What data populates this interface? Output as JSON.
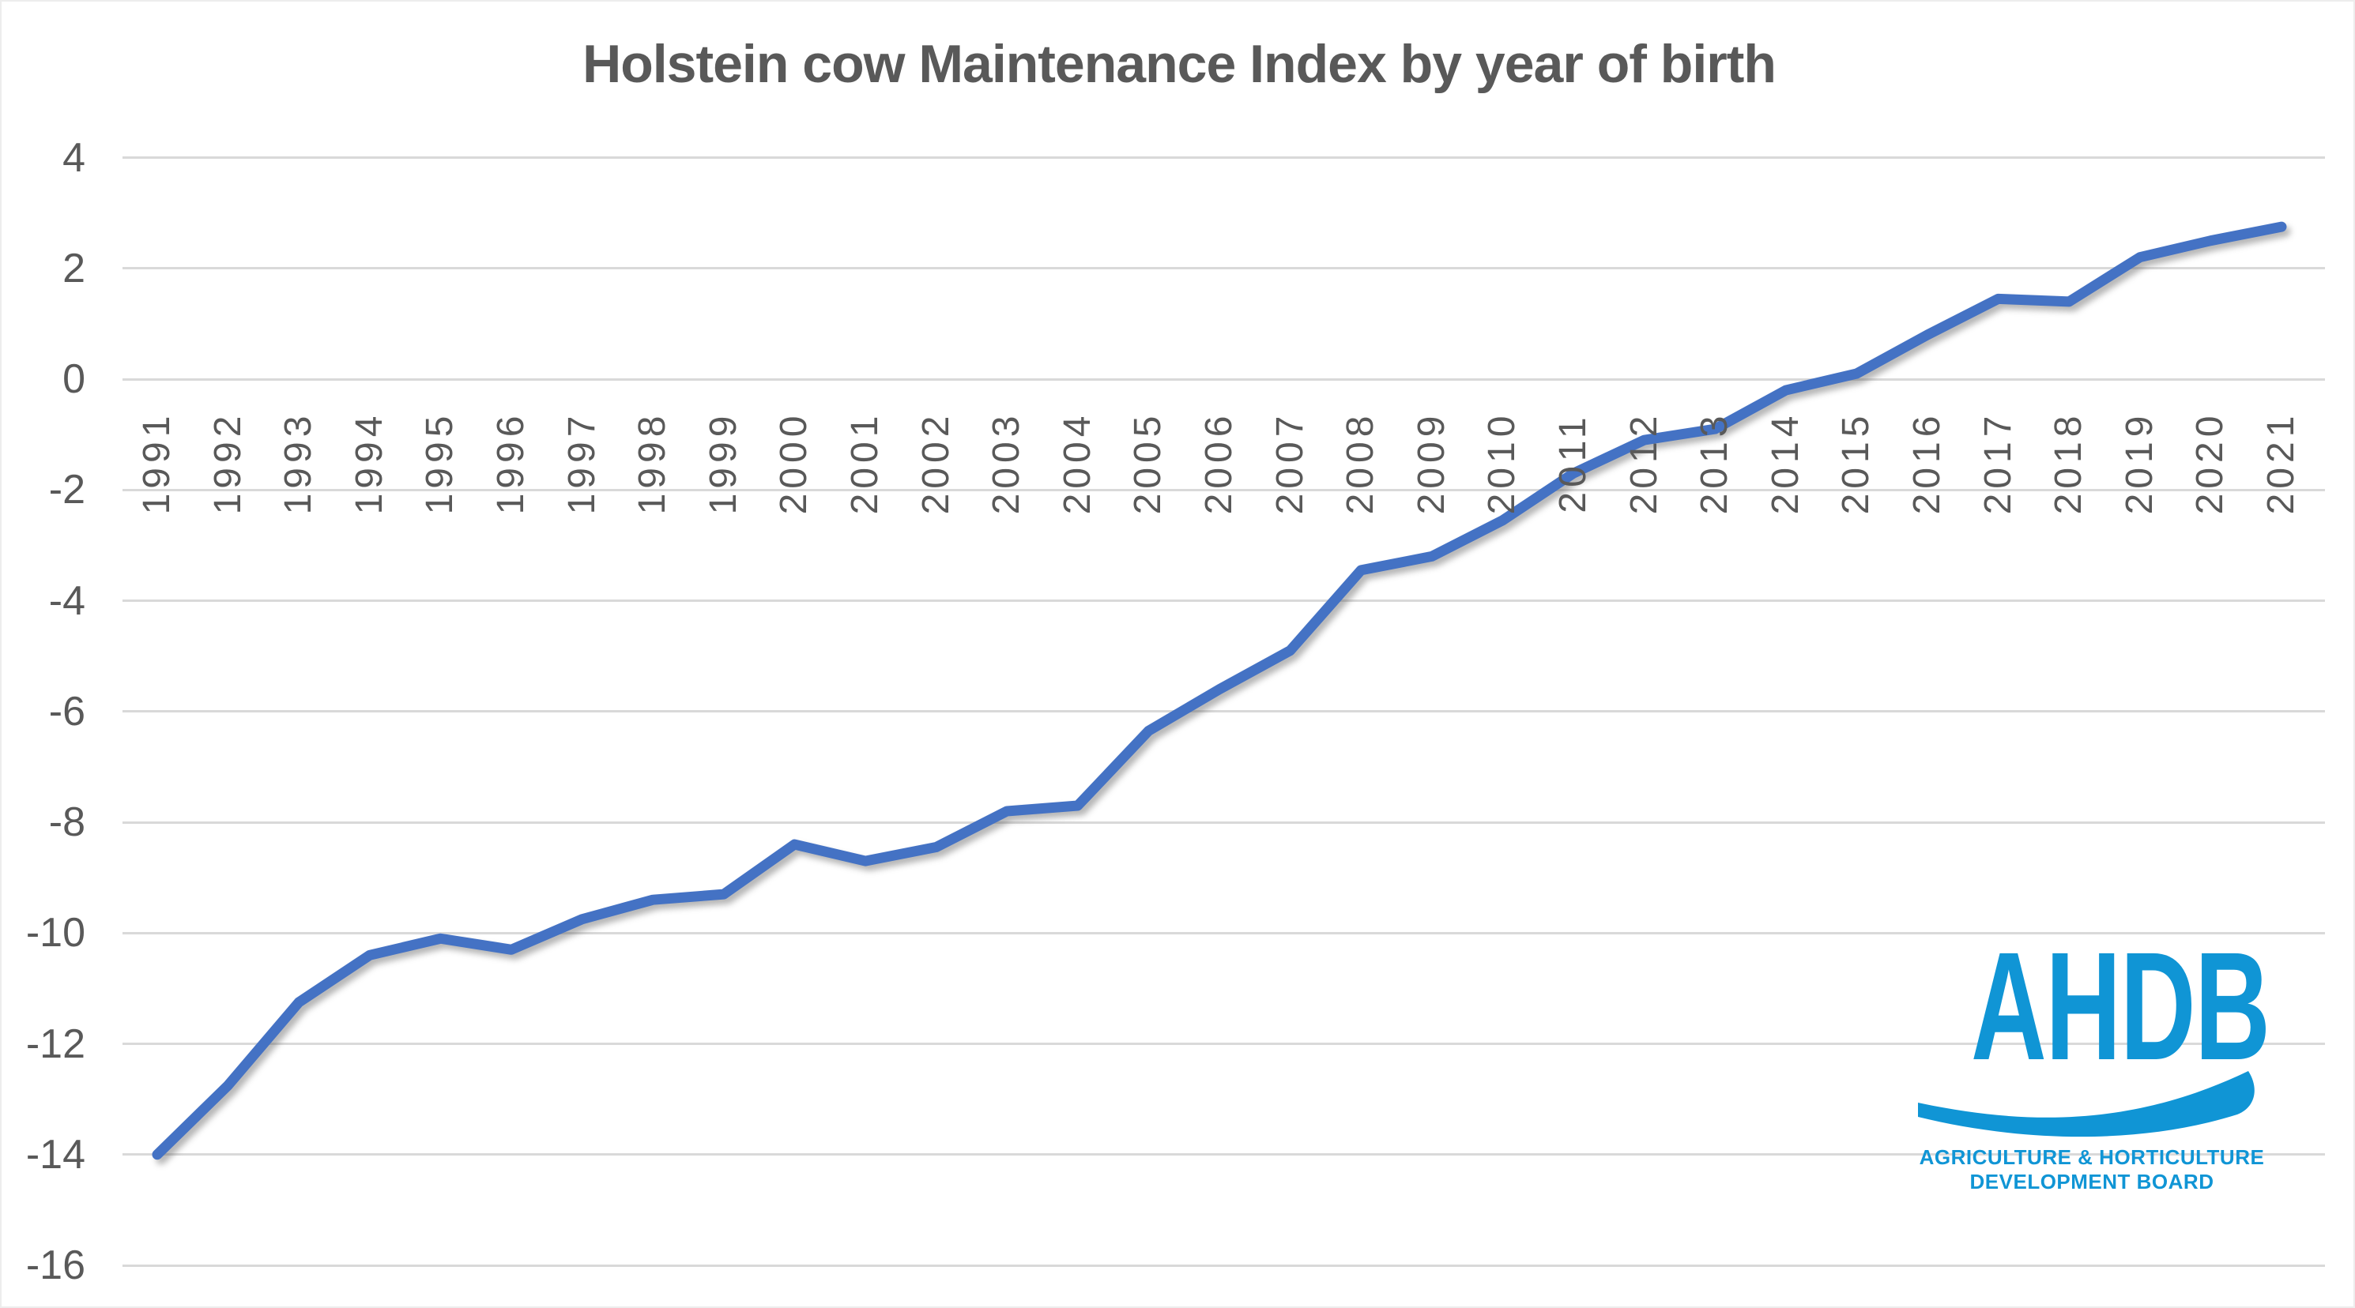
{
  "title": "Holstein cow Maintenance Index by year of birth",
  "chart_data": {
    "type": "line",
    "title": "Holstein cow Maintenance Index by year of birth",
    "xlabel": "",
    "ylabel": "",
    "categories": [
      "1991",
      "1992",
      "1993",
      "1994",
      "1995",
      "1996",
      "1997",
      "1998",
      "1999",
      "2000",
      "2001",
      "2002",
      "2003",
      "2004",
      "2005",
      "2006",
      "2007",
      "2008",
      "2009",
      "2010",
      "2011",
      "2012",
      "2013",
      "2014",
      "2015",
      "2016",
      "2017",
      "2018",
      "2019",
      "2020",
      "2021"
    ],
    "series": [
      {
        "name": "Maintenance Index",
        "values": [
          -14.0,
          -12.75,
          -11.25,
          -10.4,
          -10.1,
          -10.3,
          -9.75,
          -9.4,
          -9.3,
          -8.4,
          -8.7,
          -8.45,
          -7.8,
          -7.7,
          -6.35,
          -5.6,
          -4.9,
          -3.45,
          -3.2,
          -2.55,
          -1.7,
          -1.1,
          -0.9,
          -0.2,
          0.1,
          0.8,
          1.45,
          1.4,
          2.2,
          2.5,
          2.75
        ]
      }
    ],
    "yticks": [
      4,
      2,
      0,
      -2,
      -4,
      -6,
      -8,
      -10,
      -12,
      -14,
      -16
    ],
    "ylim": [
      -16,
      4
    ],
    "grid": true,
    "legend_position": "none"
  },
  "colors": {
    "line": "#4472C4",
    "gridline": "#D9D9D9",
    "axis_text": "#595959",
    "title_text": "#595959",
    "logo_blue": "#1095D5"
  },
  "logo": {
    "acronym": "AHDB",
    "line1": "AGRICULTURE & HORTICULTURE",
    "line2": "DEVELOPMENT BOARD"
  }
}
